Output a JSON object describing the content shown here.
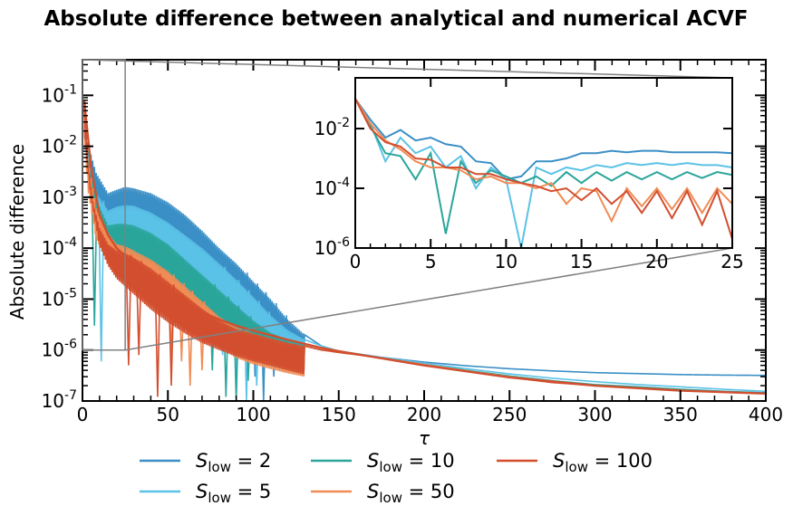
{
  "chart_data": {
    "type": "line",
    "title": "Absolute difference between analytical and numerical ACVF",
    "xlabel": "τ",
    "ylabel": "Absolute difference",
    "x_scale": "linear",
    "y_scale": "log",
    "xlim": [
      0,
      400
    ],
    "ylim": [
      1e-07,
      0.5
    ],
    "x_ticks": [
      0,
      50,
      100,
      150,
      200,
      250,
      300,
      350,
      400
    ],
    "y_ticks": [
      1e-07,
      1e-06,
      1e-05,
      0.0001,
      0.001,
      0.01,
      0.1
    ],
    "legend_position": "bottom",
    "series": [
      {
        "name": "S_low = 2",
        "legend_main": "S",
        "legend_sub": "low",
        "legend_suffix": " = 2",
        "color": "#3a8fc6",
        "envelope": [
          [
            1,
            0.08
          ],
          [
            3,
            0.012
          ],
          [
            8,
            0.003
          ],
          [
            15,
            0.0012
          ],
          [
            20,
            0.0014
          ],
          [
            25,
            0.0016
          ],
          [
            30,
            0.0015
          ],
          [
            40,
            0.0012
          ],
          [
            50,
            0.0008
          ],
          [
            60,
            0.00045
          ],
          [
            70,
            0.00022
          ],
          [
            80,
            0.0001
          ],
          [
            90,
            5e-05
          ],
          [
            100,
            2.2e-05
          ],
          [
            110,
            1e-05
          ],
          [
            120,
            4e-06
          ],
          [
            130,
            2e-06
          ],
          [
            140,
            1.2e-06
          ],
          [
            150,
            9.5e-07
          ],
          [
            175,
            7.2e-07
          ],
          [
            200,
            5.8e-07
          ],
          [
            225,
            4.9e-07
          ],
          [
            250,
            4.3e-07
          ],
          [
            275,
            3.9e-07
          ],
          [
            300,
            3.6e-07
          ],
          [
            325,
            3.45e-07
          ],
          [
            350,
            3.3e-07
          ],
          [
            375,
            3.22e-07
          ],
          [
            400,
            3.18e-07
          ]
        ],
        "dips": [
          [
            95,
            1.2e-06
          ],
          [
            101,
            3e-07
          ],
          [
            106,
            1e-07
          ],
          [
            112,
            3e-07
          ],
          [
            118,
            6e-07
          ]
        ]
      },
      {
        "name": "S_low = 5",
        "legend_main": "S",
        "legend_sub": "low",
        "legend_suffix": " = 5",
        "color": "#5bc2e7",
        "envelope": [
          [
            1,
            0.08
          ],
          [
            3,
            0.01
          ],
          [
            8,
            0.0012
          ],
          [
            15,
            0.00055
          ],
          [
            20,
            0.00065
          ],
          [
            25,
            0.0007
          ],
          [
            30,
            0.00068
          ],
          [
            40,
            0.0005
          ],
          [
            50,
            0.00032
          ],
          [
            60,
            0.00018
          ],
          [
            70,
            0.0001
          ],
          [
            80,
            5e-05
          ],
          [
            90,
            2.4e-05
          ],
          [
            100,
            1.1e-05
          ],
          [
            110,
            4.8e-06
          ],
          [
            120,
            2.5e-06
          ],
          [
            130,
            1.6e-06
          ],
          [
            140,
            1.2e-06
          ],
          [
            150,
            9.5e-07
          ],
          [
            175,
            7.2e-07
          ],
          [
            200,
            5.5e-07
          ],
          [
            225,
            4.3e-07
          ],
          [
            250,
            3.4e-07
          ],
          [
            275,
            2.8e-07
          ],
          [
            300,
            2.4e-07
          ],
          [
            325,
            2.1e-07
          ],
          [
            350,
            1.9e-07
          ],
          [
            375,
            1.7e-07
          ],
          [
            400,
            1.55e-07
          ]
        ],
        "dips": [
          [
            11,
            6e-07
          ],
          [
            82,
            8e-07
          ],
          [
            90,
            1.5e-07
          ],
          [
            96,
            1e-07
          ],
          [
            102,
            2e-07
          ],
          [
            108,
            5e-07
          ]
        ]
      },
      {
        "name": "S_low = 10",
        "legend_main": "S",
        "legend_sub": "low",
        "legend_suffix": " = 10",
        "color": "#2aa59a",
        "envelope": [
          [
            1,
            0.08
          ],
          [
            3,
            0.008
          ],
          [
            8,
            0.0009
          ],
          [
            15,
            0.00028
          ],
          [
            20,
            0.0003
          ],
          [
            25,
            0.0003
          ],
          [
            30,
            0.00028
          ],
          [
            40,
            0.0002
          ],
          [
            50,
            0.00012
          ],
          [
            60,
            6e-05
          ],
          [
            70,
            3e-05
          ],
          [
            80,
            1.5e-05
          ],
          [
            90,
            7.5e-06
          ],
          [
            100,
            3.8e-06
          ],
          [
            110,
            2.2e-06
          ],
          [
            120,
            1.6e-06
          ],
          [
            130,
            1.3e-06
          ],
          [
            140,
            1.1e-06
          ],
          [
            150,
            9.2e-07
          ],
          [
            175,
            7e-07
          ],
          [
            200,
            5.2e-07
          ],
          [
            225,
            4e-07
          ],
          [
            250,
            3.1e-07
          ],
          [
            275,
            2.5e-07
          ],
          [
            300,
            2.1e-07
          ],
          [
            325,
            1.9e-07
          ],
          [
            350,
            1.7e-07
          ],
          [
            375,
            1.55e-07
          ],
          [
            400,
            1.45e-07
          ]
        ],
        "dips": [
          [
            7,
            3e-06
          ],
          [
            76,
            4e-07
          ],
          [
            84,
            1.2e-07
          ],
          [
            90,
            1e-07
          ],
          [
            97,
            2.5e-07
          ]
        ]
      },
      {
        "name": "S_low = 50",
        "legend_main": "S",
        "legend_sub": "low",
        "legend_suffix": " = 50",
        "color": "#f08c55",
        "envelope": [
          [
            1,
            0.08
          ],
          [
            3,
            0.006
          ],
          [
            8,
            0.0006
          ],
          [
            15,
            0.0002
          ],
          [
            20,
            0.00012
          ],
          [
            25,
            0.00011
          ],
          [
            30,
            9e-05
          ],
          [
            40,
            6e-05
          ],
          [
            50,
            3.5e-05
          ],
          [
            60,
            1.8e-05
          ],
          [
            70,
            9e-06
          ],
          [
            80,
            4.5e-06
          ],
          [
            90,
            2.8e-06
          ],
          [
            100,
            2.1e-06
          ],
          [
            110,
            1.7e-06
          ],
          [
            120,
            1.4e-06
          ],
          [
            130,
            1.2e-06
          ],
          [
            140,
            1e-06
          ],
          [
            150,
            9e-07
          ],
          [
            175,
            7e-07
          ],
          [
            200,
            5.2e-07
          ],
          [
            225,
            3.9e-07
          ],
          [
            250,
            3e-07
          ],
          [
            275,
            2.4e-07
          ],
          [
            300,
            2e-07
          ],
          [
            325,
            1.8e-07
          ],
          [
            350,
            1.6e-07
          ],
          [
            375,
            1.5e-07
          ],
          [
            400,
            1.4e-07
          ]
        ],
        "dips": [
          [
            52,
            8e-07
          ],
          [
            58,
            6e-07
          ],
          [
            63,
            2e-07
          ],
          [
            70,
            4e-07
          ]
        ]
      },
      {
        "name": "S_low = 100",
        "legend_main": "S",
        "legend_sub": "low",
        "legend_suffix": " = 100",
        "color": "#d24e2e",
        "envelope": [
          [
            1,
            0.08
          ],
          [
            3,
            0.005
          ],
          [
            6,
            0.0008
          ],
          [
            10,
            0.00025
          ],
          [
            15,
            0.00012
          ],
          [
            20,
            9e-05
          ],
          [
            25,
            8e-05
          ],
          [
            30,
            6.5e-05
          ],
          [
            40,
            4e-05
          ],
          [
            50,
            2.2e-05
          ],
          [
            60,
            1.2e-05
          ],
          [
            70,
            6.5e-06
          ],
          [
            80,
            3.8e-06
          ],
          [
            90,
            2.6e-06
          ],
          [
            100,
            2.1e-06
          ],
          [
            110,
            1.7e-06
          ],
          [
            120,
            1.4e-06
          ],
          [
            130,
            1.2e-06
          ],
          [
            140,
            1e-06
          ],
          [
            150,
            9e-07
          ],
          [
            175,
            7e-07
          ],
          [
            200,
            5e-07
          ],
          [
            225,
            3.8e-07
          ],
          [
            250,
            2.9e-07
          ],
          [
            275,
            2.3e-07
          ],
          [
            300,
            2e-07
          ],
          [
            325,
            1.8e-07
          ],
          [
            350,
            1.6e-07
          ],
          [
            375,
            1.5e-07
          ],
          [
            400,
            1.4e-07
          ]
        ],
        "mean": [
          [
            1,
            0.08
          ],
          [
            5,
            0.004
          ],
          [
            10,
            0.00045
          ],
          [
            15,
            0.00018
          ],
          [
            20,
            0.0001
          ],
          [
            30,
            5e-05
          ],
          [
            40,
            2.5e-05
          ],
          [
            50,
            1.4e-05
          ],
          [
            60,
            8.5e-06
          ],
          [
            70,
            5.5e-06
          ],
          [
            80,
            4e-06
          ],
          [
            90,
            3e-06
          ],
          [
            100,
            2.4e-06
          ],
          [
            120,
            1.6e-06
          ],
          [
            140,
            1.1e-06
          ],
          [
            150,
            9.5e-07
          ],
          [
            200,
            5e-07
          ],
          [
            250,
            2.9e-07
          ],
          [
            300,
            2e-07
          ],
          [
            350,
            1.6e-07
          ],
          [
            400,
            1.4e-07
          ]
        ],
        "dips": [
          [
            27,
            5e-07
          ],
          [
            33,
            8e-07
          ],
          [
            44,
            1.2e-07
          ],
          [
            52,
            2e-07
          ]
        ]
      }
    ],
    "inset": {
      "xlim": [
        0,
        25
      ],
      "ylim": [
        1e-06,
        0.5
      ],
      "x_ticks": [
        0,
        5,
        10,
        15,
        20,
        25
      ],
      "y_ticks": [
        1e-06,
        0.0001,
        0.01
      ],
      "zoom_box": {
        "x": [
          0,
          25
        ],
        "y": [
          1e-06,
          0.5
        ]
      },
      "series": [
        {
          "name": "S_low = 2",
          "color": "#3a8fc6",
          "values": [
            0.1,
            0.02,
            0.005,
            0.009,
            0.004,
            0.005,
            0.003,
            0.0025,
            0.0008,
            0.0007,
            0.0002,
            0.00025,
            0.0008,
            0.0008,
            0.001,
            0.0015,
            0.0015,
            0.0018,
            0.0016,
            0.0018,
            0.0018,
            0.0016,
            0.0016,
            0.0016,
            0.0016,
            0.0015
          ]
        },
        {
          "name": "S_low = 5",
          "color": "#5bc2e7",
          "values": [
            0.1,
            0.015,
            0.0008,
            0.005,
            0.0015,
            0.0025,
            0.0005,
            0.0012,
            0.0001,
            0.0005,
            0.0002,
            1e-06,
            0.0005,
            0.0003,
            0.0005,
            0.0004,
            0.0006,
            0.0005,
            0.0007,
            0.0006,
            0.0007,
            0.0006,
            0.0007,
            0.0006,
            0.0006,
            0.0005
          ]
        },
        {
          "name": "S_low = 10",
          "color": "#2aa59a",
          "values": [
            0.1,
            0.012,
            0.0015,
            0.0012,
            0.0002,
            0.0015,
            3e-06,
            0.0008,
            0.00015,
            0.0004,
            0.00025,
            0.00015,
            0.00025,
            0.00012,
            0.00035,
            0.00015,
            0.00035,
            0.00018,
            0.00035,
            0.0002,
            0.00035,
            0.0002,
            0.00035,
            0.00022,
            0.00035,
            0.00028
          ]
        },
        {
          "name": "S_low = 50",
          "color": "#f08c55",
          "values": [
            0.1,
            0.015,
            0.004,
            0.002,
            0.0008,
            0.0005,
            0.0005,
            0.0004,
            0.0002,
            0.00025,
            0.00015,
            0.00015,
            0.0001,
            0.00015,
            3e-05,
            0.0001,
            8e-05,
            8e-06,
            0.0001,
            2.5e-05,
            0.0001,
            2e-05,
            0.0001,
            1.5e-05,
            0.0001,
            3e-05
          ]
        },
        {
          "name": "S_low = 100",
          "color": "#d24e2e",
          "values": [
            0.1,
            0.01,
            0.0035,
            0.0025,
            0.001,
            0.0009,
            0.0005,
            0.0005,
            0.0003,
            0.0003,
            0.0002,
            0.00015,
            0.00012,
            8e-05,
            0.0001,
            4e-05,
            0.0001,
            3e-05,
            8e-05,
            1.5e-05,
            8e-05,
            1e-05,
            8e-05,
            6e-06,
            8e-05,
            2e-06
          ]
        }
      ]
    }
  }
}
